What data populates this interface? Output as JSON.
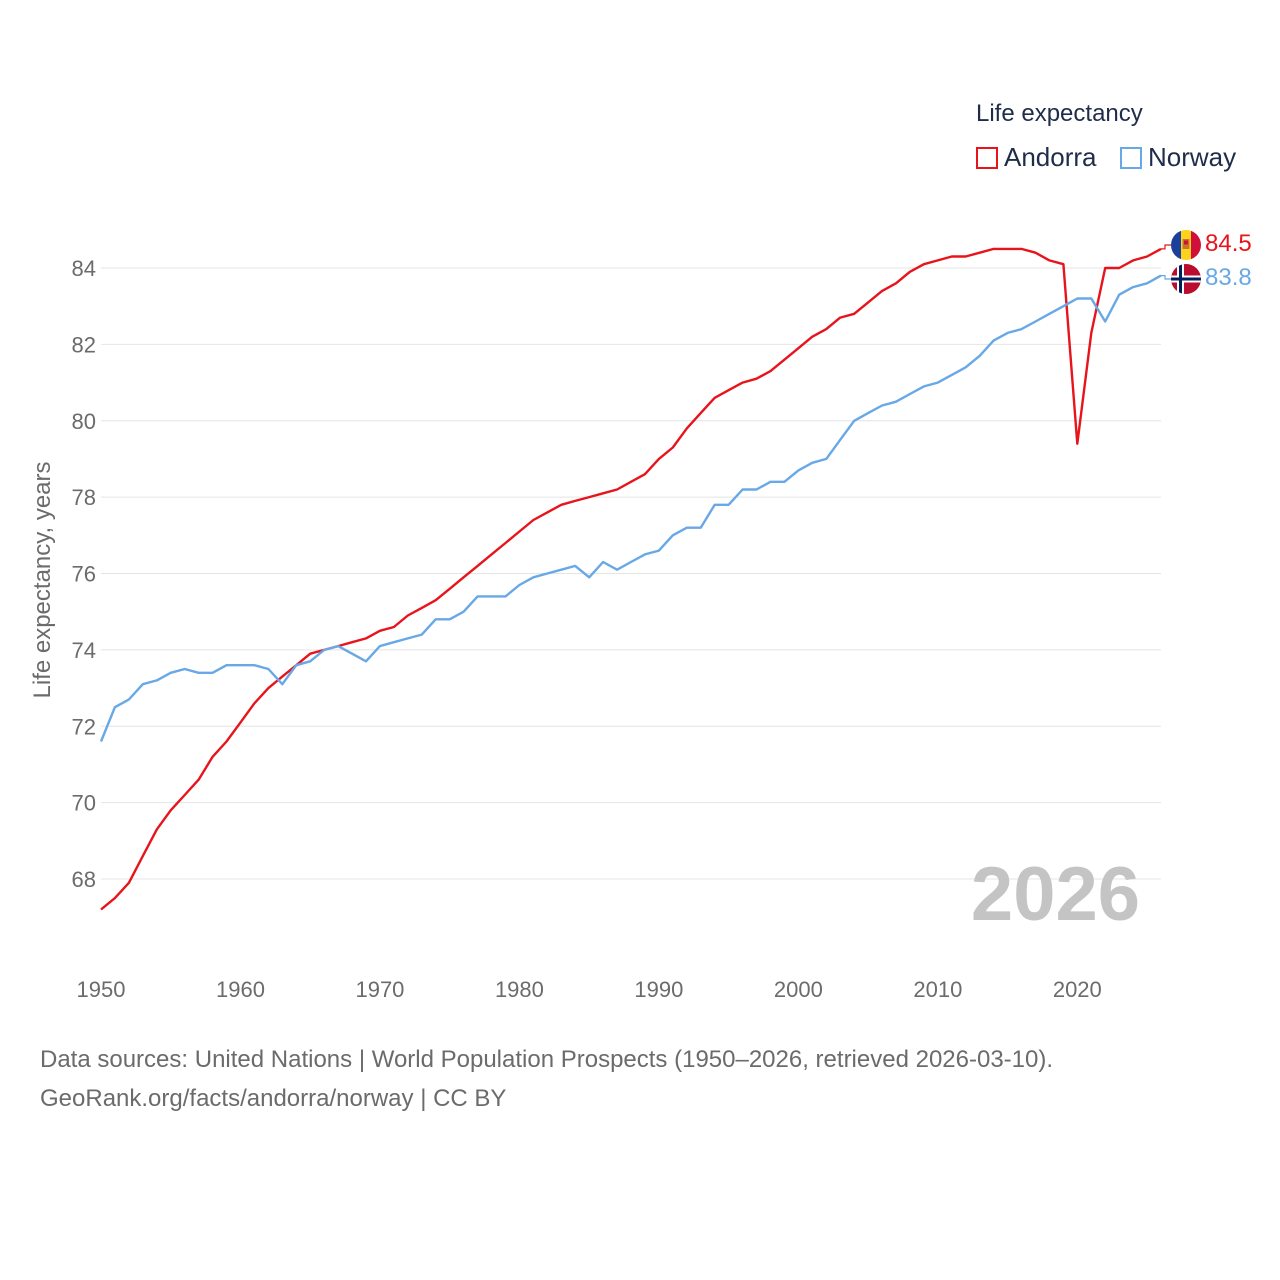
{
  "legend": {
    "title": "Life expectancy",
    "items": [
      {
        "label": "Andorra",
        "color": "#e8141c"
      },
      {
        "label": "Norway",
        "color": "#68a8e6"
      }
    ]
  },
  "chart_data": {
    "type": "line",
    "title": "",
    "xlabel": "",
    "ylabel": "Life expectancy, years",
    "xlim": [
      1950,
      2026
    ],
    "ylim": [
      66.5,
      85.5
    ],
    "x_ticks": [
      "1950",
      "1960",
      "1970",
      "1980",
      "1990",
      "2000",
      "2010",
      "2020"
    ],
    "y_ticks": [
      "68",
      "70",
      "72",
      "74",
      "76",
      "78",
      "80",
      "82",
      "84"
    ],
    "year_label": "2026",
    "grid": true,
    "series": [
      {
        "name": "Andorra",
        "color": "#e8141c",
        "end_label": "84.5",
        "flag": "andorra-flag",
        "x": [
          1950,
          1951,
          1952,
          1953,
          1954,
          1955,
          1956,
          1957,
          1958,
          1959,
          1960,
          1961,
          1962,
          1963,
          1964,
          1965,
          1966,
          1967,
          1968,
          1969,
          1970,
          1971,
          1972,
          1973,
          1974,
          1975,
          1976,
          1977,
          1978,
          1979,
          1980,
          1981,
          1982,
          1983,
          1984,
          1985,
          1986,
          1987,
          1988,
          1989,
          1990,
          1991,
          1992,
          1993,
          1994,
          1995,
          1996,
          1997,
          1998,
          1999,
          2000,
          2001,
          2002,
          2003,
          2004,
          2005,
          2006,
          2007,
          2008,
          2009,
          2010,
          2011,
          2012,
          2013,
          2014,
          2015,
          2016,
          2017,
          2018,
          2019,
          2020,
          2021,
          2022,
          2023,
          2024,
          2025,
          2026
        ],
        "values": [
          67.2,
          67.5,
          67.9,
          68.6,
          69.3,
          69.8,
          70.2,
          70.6,
          71.2,
          71.6,
          72.1,
          72.6,
          73.0,
          73.3,
          73.6,
          73.9,
          74.0,
          74.1,
          74.2,
          74.3,
          74.5,
          74.6,
          74.9,
          75.1,
          75.3,
          75.6,
          75.9,
          76.2,
          76.5,
          76.8,
          77.1,
          77.4,
          77.6,
          77.8,
          77.9,
          78.0,
          78.1,
          78.2,
          78.4,
          78.6,
          79.0,
          79.3,
          79.8,
          80.2,
          80.6,
          80.8,
          81.0,
          81.1,
          81.3,
          81.6,
          81.9,
          82.2,
          82.4,
          82.7,
          82.8,
          83.1,
          83.4,
          83.6,
          83.9,
          84.1,
          84.2,
          84.3,
          84.3,
          84.4,
          84.5,
          84.5,
          84.5,
          84.4,
          84.2,
          84.1,
          79.4,
          82.3,
          84.0,
          84.0,
          84.2,
          84.3,
          84.5
        ]
      },
      {
        "name": "Norway",
        "color": "#68a8e6",
        "end_label": "83.8",
        "flag": "norway-flag",
        "x": [
          1950,
          1951,
          1952,
          1953,
          1954,
          1955,
          1956,
          1957,
          1958,
          1959,
          1960,
          1961,
          1962,
          1963,
          1964,
          1965,
          1966,
          1967,
          1968,
          1969,
          1970,
          1971,
          1972,
          1973,
          1974,
          1975,
          1976,
          1977,
          1978,
          1979,
          1980,
          1981,
          1982,
          1983,
          1984,
          1985,
          1986,
          1987,
          1988,
          1989,
          1990,
          1991,
          1992,
          1993,
          1994,
          1995,
          1996,
          1997,
          1998,
          1999,
          2000,
          2001,
          2002,
          2003,
          2004,
          2005,
          2006,
          2007,
          2008,
          2009,
          2010,
          2011,
          2012,
          2013,
          2014,
          2015,
          2016,
          2017,
          2018,
          2019,
          2020,
          2021,
          2022,
          2023,
          2024,
          2025,
          2026
        ],
        "values": [
          71.6,
          72.5,
          72.7,
          73.1,
          73.2,
          73.4,
          73.5,
          73.4,
          73.4,
          73.6,
          73.6,
          73.6,
          73.5,
          73.1,
          73.6,
          73.7,
          74.0,
          74.1,
          73.9,
          73.7,
          74.1,
          74.2,
          74.3,
          74.4,
          74.8,
          74.8,
          75.0,
          75.4,
          75.4,
          75.4,
          75.7,
          75.9,
          76.0,
          76.1,
          76.2,
          75.9,
          76.3,
          76.1,
          76.3,
          76.5,
          76.6,
          77.0,
          77.2,
          77.2,
          77.8,
          77.8,
          78.2,
          78.2,
          78.4,
          78.4,
          78.7,
          78.9,
          79.0,
          79.5,
          80.0,
          80.2,
          80.4,
          80.5,
          80.7,
          80.9,
          81.0,
          81.2,
          81.4,
          81.7,
          82.1,
          82.3,
          82.4,
          82.6,
          82.8,
          83.0,
          83.2,
          83.2,
          82.6,
          83.3,
          83.5,
          83.6,
          83.8
        ]
      }
    ]
  },
  "source": {
    "line1": "Data sources: United Nations | World Population Prospects (1950–2026, retrieved 2026-03-10).",
    "line2": "GeoRank.org/facts/andorra/norway | CC BY"
  }
}
